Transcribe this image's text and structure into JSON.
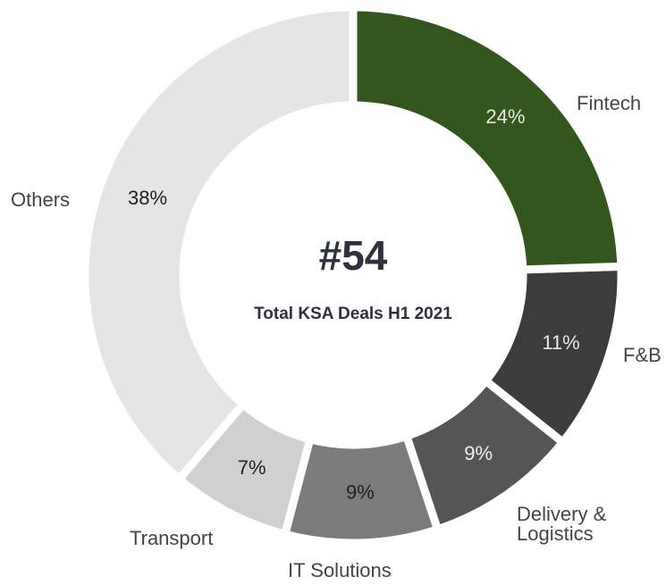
{
  "chart_data": {
    "type": "donut",
    "title": "#54",
    "subtitle": "Total KSA Deals H1 2021",
    "categories": [
      "Fintech",
      "F&B",
      "Delivery & Logistics",
      "IT Solutions",
      "Transport",
      "Others"
    ],
    "values": [
      24,
      11,
      9,
      9,
      7,
      38
    ],
    "value_labels": [
      "24%",
      "11%",
      "9%",
      "9%",
      "7%",
      "38%"
    ],
    "colors": [
      "#33561d",
      "#3c3c3b",
      "#555555",
      "#7b7b7b",
      "#d0d0d0",
      "#e5e5e5"
    ]
  }
}
